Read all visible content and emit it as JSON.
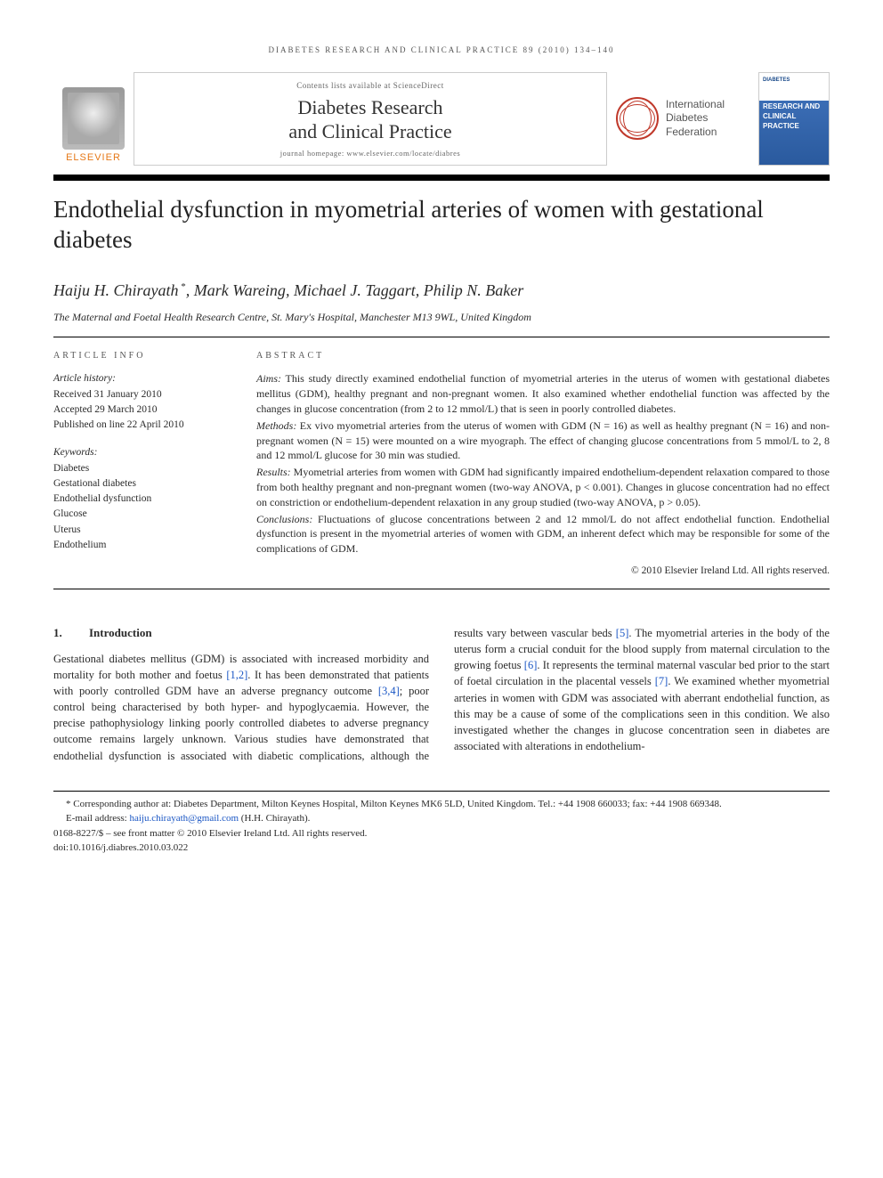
{
  "running_header": "DIABETES RESEARCH AND CLINICAL PRACTICE 89 (2010) 134–140",
  "masthead": {
    "elsevier": "ELSEVIER",
    "contents_line": "Contents lists available at ScienceDirect",
    "journal_name_l1": "Diabetes Research",
    "journal_name_l2": "and Clinical Practice",
    "homepage": "journal homepage: www.elsevier.com/locate/diabres",
    "idf_l1": "International",
    "idf_l2": "Diabetes",
    "idf_l3": "Federation",
    "cover_l1": "DIABETES",
    "cover_l2": "RESEARCH AND CLINICAL PRACTICE"
  },
  "title": "Endothelial dysfunction in myometrial arteries of women with gestational diabetes",
  "authors_html": "Haiju H. Chirayath *, Mark Wareing, Michael J. Taggart, Philip N. Baker",
  "affiliation": "The Maternal and Foetal Health Research Centre, St. Mary's Hospital, Manchester M13 9WL, United Kingdom",
  "article_info_head": "ARTICLE INFO",
  "abstract_head": "ABSTRACT",
  "history_label": "Article history:",
  "history_l1": "Received 31 January 2010",
  "history_l2": "Accepted 29 March 2010",
  "history_l3": "Published on line 22 April 2010",
  "keywords_label": "Keywords:",
  "keywords": [
    "Diabetes",
    "Gestational diabetes",
    "Endothelial dysfunction",
    "Glucose",
    "Uterus",
    "Endothelium"
  ],
  "abstract": {
    "aims_label": "Aims:",
    "aims": " This study directly examined endothelial function of myometrial arteries in the uterus of women with gestational diabetes mellitus (GDM), healthy pregnant and non-pregnant women. It also examined whether endothelial function was affected by the changes in glucose concentration (from 2 to 12 mmol/L) that is seen in poorly controlled diabetes.",
    "methods_label": "Methods:",
    "methods": " Ex vivo myometrial arteries from the uterus of women with GDM (N = 16) as well as healthy pregnant (N = 16) and non-pregnant women (N = 15) were mounted on a wire myograph. The effect of changing glucose concentrations from 5 mmol/L to 2, 8 and 12 mmol/L glucose for 30 min was studied.",
    "results_label": "Results:",
    "results": " Myometrial arteries from women with GDM had significantly impaired endothelium-dependent relaxation compared to those from both healthy pregnant and non-pregnant women (two-way ANOVA, p < 0.001). Changes in glucose concentration had no effect on constriction or endothelium-dependent relaxation in any group studied (two-way ANOVA, p > 0.05).",
    "conclusions_label": "Conclusions:",
    "conclusions": " Fluctuations of glucose concentrations between 2 and 12 mmol/L do not affect endothelial function. Endothelial dysfunction is present in the myometrial arteries of women with GDM, an inherent defect which may be responsible for some of the complications of GDM.",
    "copyright": "© 2010 Elsevier Ireland Ltd. All rights reserved."
  },
  "section1_num": "1.",
  "section1_title": "Introduction",
  "body_p1a": "Gestational diabetes mellitus (GDM) is associated with increased morbidity and mortality for both mother and foetus ",
  "ref12": "[1,2]",
  "body_p1b": ". It has been demonstrated that patients with poorly controlled GDM have an adverse pregnancy outcome ",
  "ref34": "[3,4]",
  "body_p1c": "; poor control being characterised by both hyper- and hypoglycaemia. However, the precise pathophysiology linking poorly controlled diabetes to adverse pregnancy outcome remains largely unknown. Various studies have demonstrated that endothelial dysfunction is associated with diabetic complica",
  "body_p2a": "tions, although the results vary between vascular beds ",
  "ref5": "[5]",
  "body_p2b": ". The myometrial arteries in the body of the uterus form a crucial conduit for the blood supply from maternal circulation to the growing foetus ",
  "ref6": "[6]",
  "body_p2c": ". It represents the terminal maternal vascular bed prior to the start of foetal circulation in the placental vessels ",
  "ref7": "[7]",
  "body_p2d": ". We examined whether myometrial arteries in women with GDM was associated with aberrant endothelial function, as this may be a cause of some of the complications seen in this condition. We also investigated whether the changes in glucose concentration seen in diabetes are associated with alterations in endothelium-",
  "footnotes": {
    "corr": "* Corresponding author at: Diabetes Department, Milton Keynes Hospital, Milton Keynes MK6 5LD, United Kingdom. Tel.: +44 1908 660033; fax: +44 1908 669348.",
    "email_label": "E-mail address: ",
    "email": "haiju.chirayath@gmail.com",
    "email_tail": " (H.H. Chirayath).",
    "issn": "0168-8227/$ – see front matter © 2010 Elsevier Ireland Ltd. All rights reserved.",
    "doi": "doi:10.1016/j.diabres.2010.03.022"
  }
}
